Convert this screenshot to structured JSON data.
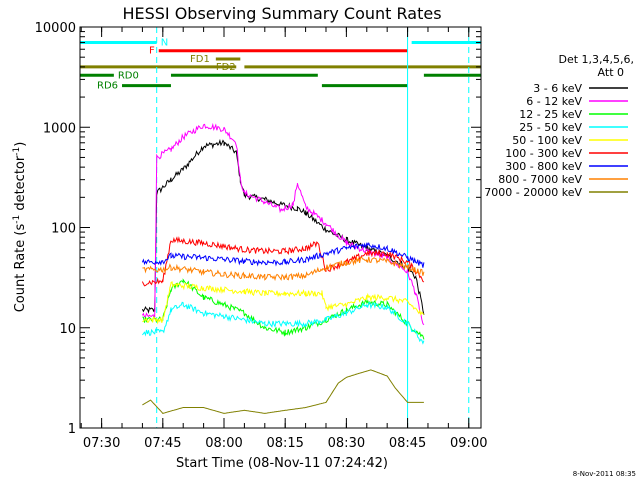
{
  "chart_data": {
    "type": "line",
    "title": "HESSI Observing Summary Count Rates",
    "xlabel": "Start Time (08-Nov-11 07:24:42)",
    "ylabel_main": "Count Rate (s",
    "ylabel_sup1": "-1",
    "ylabel_mid": " detector",
    "ylabel_sup2": "-1",
    "ylabel_end": ")",
    "yscale": "log",
    "xlim": [
      "07:24:42",
      "09:03"
    ],
    "ylim": [
      1,
      10000
    ],
    "x_ticks": [
      "07:30",
      "07:45",
      "08:00",
      "08:15",
      "08:30",
      "08:45",
      "09:00"
    ],
    "y_ticks": [
      "1",
      "10",
      "100",
      "1000",
      "10000"
    ],
    "legend_header_1": "Det 1,3,4,5,6,",
    "legend_header_2": "Att 0",
    "legend": [
      {
        "label": "3 - 6 keV",
        "color": "#000000"
      },
      {
        "label": "6 - 12 keV",
        "color": "#ff00ff"
      },
      {
        "label": "12 - 25 keV",
        "color": "#00ff00"
      },
      {
        "label": "25 - 50 keV",
        "color": "#00ffff"
      },
      {
        "label": "50 - 100 keV",
        "color": "#ffff00"
      },
      {
        "label": "100 - 300 keV",
        "color": "#ff0000"
      },
      {
        "label": "300 - 800 keV",
        "color": "#0000ff"
      },
      {
        "label": "800 - 7000 keV",
        "color": "#ff8000"
      },
      {
        "label": "7000 - 20000 keV",
        "color": "#808000"
      }
    ],
    "flag_bars": [
      {
        "label": "N",
        "color": "#00ffff",
        "level": 7000,
        "segments": [
          [
            "07:24:42",
            "07:43:30"
          ],
          [
            "08:46",
            "09:03"
          ]
        ]
      },
      {
        "label": "F",
        "color": "#ff0000",
        "level": 5800,
        "segments": [
          [
            "07:44",
            "08:45"
          ]
        ]
      },
      {
        "label": "FD1",
        "color": "#808000",
        "level": 4800,
        "segments": [
          [
            "07:58",
            "08:04"
          ]
        ]
      },
      {
        "label": "FD2",
        "color": "#808000",
        "level": 4000,
        "segments": [
          [
            "07:24:42",
            "08:03"
          ],
          [
            "08:05",
            "09:03"
          ]
        ]
      },
      {
        "label": "RD0",
        "color": "#008000",
        "level": 3300,
        "segments": [
          [
            "07:24:42",
            "07:33"
          ],
          [
            "07:47",
            "08:23"
          ],
          [
            "08:49",
            "09:03"
          ]
        ]
      },
      {
        "label": "RD6",
        "color": "#008000",
        "level": 2600,
        "segments": [
          [
            "07:35",
            "07:47"
          ],
          [
            "08:24",
            "08:45"
          ]
        ]
      }
    ],
    "vlines": [
      {
        "x": "07:24:42",
        "style": "solid"
      },
      {
        "x": "07:43:30",
        "style": "dashed"
      },
      {
        "x": "08:45",
        "style": "solid"
      },
      {
        "x": "09:00",
        "style": "dashed"
      }
    ],
    "series": [
      {
        "name": "3 - 6 keV",
        "color": "#000000",
        "points": [
          [
            "07:40",
            15
          ],
          [
            "07:43",
            15
          ],
          [
            "07:43:30",
            220
          ],
          [
            "07:47",
            300
          ],
          [
            "07:50",
            380
          ],
          [
            "07:55",
            650
          ],
          [
            "08:00",
            700
          ],
          [
            "08:03",
            560
          ],
          [
            "08:04",
            300
          ],
          [
            "08:05",
            210
          ],
          [
            "08:10",
            190
          ],
          [
            "08:14",
            170
          ],
          [
            "08:18",
            155
          ],
          [
            "08:20",
            140
          ],
          [
            "08:25",
            95
          ],
          [
            "08:30",
            75
          ],
          [
            "08:35",
            62
          ],
          [
            "08:40",
            52
          ],
          [
            "08:45",
            40
          ],
          [
            "08:47",
            32
          ],
          [
            "08:49",
            14
          ]
        ]
      },
      {
        "name": "6 - 12 keV",
        "color": "#ff00ff",
        "points": [
          [
            "07:40",
            13
          ],
          [
            "07:43",
            13
          ],
          [
            "07:43:30",
            500
          ],
          [
            "07:47",
            600
          ],
          [
            "07:50",
            800
          ],
          [
            "07:55",
            1050
          ],
          [
            "08:00",
            960
          ],
          [
            "08:03",
            700
          ],
          [
            "08:04",
            300
          ],
          [
            "08:05",
            220
          ],
          [
            "08:10",
            180
          ],
          [
            "08:14",
            150
          ],
          [
            "08:17",
            170
          ],
          [
            "08:18",
            280
          ],
          [
            "08:20",
            160
          ],
          [
            "08:25",
            110
          ],
          [
            "08:30",
            70
          ],
          [
            "08:35",
            58
          ],
          [
            "08:40",
            50
          ],
          [
            "08:45",
            36
          ],
          [
            "08:47",
            22
          ],
          [
            "08:49",
            10
          ]
        ]
      },
      {
        "name": "12 - 25 keV",
        "color": "#00ff00",
        "points": [
          [
            "07:40",
            12
          ],
          [
            "07:43",
            12
          ],
          [
            "07:45",
            12
          ],
          [
            "07:47",
            24
          ],
          [
            "07:50",
            30
          ],
          [
            "07:55",
            20
          ],
          [
            "08:00",
            17
          ],
          [
            "08:05",
            14
          ],
          [
            "08:10",
            10
          ],
          [
            "08:15",
            9
          ],
          [
            "08:20",
            10
          ],
          [
            "08:25",
            12
          ],
          [
            "08:30",
            15
          ],
          [
            "08:35",
            18
          ],
          [
            "08:40",
            17
          ],
          [
            "08:45",
            11
          ],
          [
            "08:49",
            8
          ]
        ]
      },
      {
        "name": "25 - 50 keV",
        "color": "#00ffff",
        "points": [
          [
            "07:40",
            9
          ],
          [
            "07:45",
            9
          ],
          [
            "07:47",
            15
          ],
          [
            "07:50",
            17
          ],
          [
            "07:55",
            14
          ],
          [
            "08:00",
            13
          ],
          [
            "08:05",
            12
          ],
          [
            "08:10",
            11
          ],
          [
            "08:15",
            11
          ],
          [
            "08:20",
            11
          ],
          [
            "08:25",
            12
          ],
          [
            "08:30",
            14
          ],
          [
            "08:35",
            17
          ],
          [
            "08:40",
            16
          ],
          [
            "08:45",
            11
          ],
          [
            "08:49",
            7
          ]
        ]
      },
      {
        "name": "50 - 100 keV",
        "color": "#ffff00",
        "points": [
          [
            "07:40",
            12
          ],
          [
            "07:45",
            12
          ],
          [
            "07:47",
            27
          ],
          [
            "07:55",
            25
          ],
          [
            "08:00",
            24
          ],
          [
            "08:05",
            23
          ],
          [
            "08:10",
            22
          ],
          [
            "08:15",
            22
          ],
          [
            "08:20",
            22
          ],
          [
            "08:24",
            22
          ],
          [
            "08:25",
            16
          ],
          [
            "08:30",
            17
          ],
          [
            "08:35",
            20
          ],
          [
            "08:40",
            20
          ],
          [
            "08:45",
            18
          ],
          [
            "08:49",
            13
          ]
        ]
      },
      {
        "name": "100 - 300 keV",
        "color": "#ff0000",
        "points": [
          [
            "07:40",
            28
          ],
          [
            "07:45",
            29
          ],
          [
            "07:47",
            75
          ],
          [
            "07:55",
            70
          ],
          [
            "08:00",
            65
          ],
          [
            "08:05",
            60
          ],
          [
            "08:10",
            58
          ],
          [
            "08:15",
            58
          ],
          [
            "08:20",
            62
          ],
          [
            "08:23",
            70
          ],
          [
            "08:25",
            38
          ],
          [
            "08:30",
            45
          ],
          [
            "08:35",
            55
          ],
          [
            "08:40",
            55
          ],
          [
            "08:45",
            45
          ],
          [
            "08:49",
            30
          ]
        ]
      },
      {
        "name": "300 - 800 keV",
        "color": "#0000ff",
        "points": [
          [
            "07:40",
            45
          ],
          [
            "07:45",
            46
          ],
          [
            "07:47",
            52
          ],
          [
            "07:55",
            50
          ],
          [
            "08:00",
            48
          ],
          [
            "08:05",
            46
          ],
          [
            "08:10",
            45
          ],
          [
            "08:15",
            45
          ],
          [
            "08:20",
            48
          ],
          [
            "08:25",
            55
          ],
          [
            "08:30",
            62
          ],
          [
            "08:35",
            68
          ],
          [
            "08:40",
            62
          ],
          [
            "08:45",
            50
          ],
          [
            "08:49",
            42
          ]
        ]
      },
      {
        "name": "800 - 7000 keV",
        "color": "#ff8000",
        "points": [
          [
            "07:40",
            38
          ],
          [
            "07:45",
            38
          ],
          [
            "07:47",
            40
          ],
          [
            "07:55",
            36
          ],
          [
            "08:00",
            34
          ],
          [
            "08:05",
            33
          ],
          [
            "08:10",
            32
          ],
          [
            "08:15",
            32
          ],
          [
            "08:20",
            33
          ],
          [
            "08:25",
            40
          ],
          [
            "08:30",
            45
          ],
          [
            "08:35",
            48
          ],
          [
            "08:40",
            46
          ],
          [
            "08:45",
            40
          ],
          [
            "08:49",
            35
          ]
        ]
      },
      {
        "name": "7000 - 20000 keV",
        "color": "#808000",
        "points": [
          [
            "07:40",
            1.7
          ],
          [
            "07:42",
            1.9
          ],
          [
            "07:45",
            1.4
          ],
          [
            "07:50",
            1.6
          ],
          [
            "07:55",
            1.6
          ],
          [
            "08:00",
            1.4
          ],
          [
            "08:05",
            1.5
          ],
          [
            "08:10",
            1.4
          ],
          [
            "08:15",
            1.5
          ],
          [
            "08:20",
            1.6
          ],
          [
            "08:25",
            1.8
          ],
          [
            "08:28",
            2.8
          ],
          [
            "08:30",
            3.2
          ],
          [
            "08:33",
            3.5
          ],
          [
            "08:36",
            3.8
          ],
          [
            "08:40",
            3.3
          ],
          [
            "08:42",
            2.5
          ],
          [
            "08:45",
            1.8
          ],
          [
            "08:49",
            1.8
          ]
        ]
      }
    ]
  },
  "footer": {
    "timestamp": "8-Nov-2011 08:35"
  }
}
